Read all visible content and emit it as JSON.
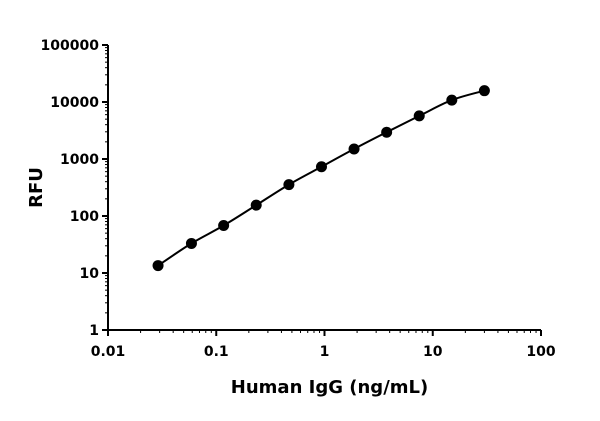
{
  "chart_data": {
    "type": "scatter",
    "title": "",
    "xlabel": "Human IgG (ng/mL)",
    "ylabel": "RFU",
    "xscale": "log",
    "yscale": "log",
    "xlim": [
      0.01,
      100
    ],
    "ylim": [
      1,
      100000
    ],
    "x_ticks": [
      0.01,
      0.1,
      1,
      10,
      100
    ],
    "x_tick_labels": [
      "0.01",
      "0.1",
      "1",
      "10",
      "100"
    ],
    "y_ticks": [
      1,
      10,
      100,
      1000,
      10000,
      100000
    ],
    "y_tick_labels": [
      "1",
      "10",
      "100",
      "1000",
      "10000",
      "100000"
    ],
    "grid": false,
    "legend": "none",
    "fit_curve": true,
    "marker_color": "#000000",
    "line_color": "#000000",
    "series": [
      {
        "x": [
          0.029,
          0.059,
          0.117,
          0.234,
          0.469,
          0.938,
          1.875,
          3.75,
          7.5,
          15,
          30
        ],
        "y": [
          13.5,
          33,
          68,
          155,
          355,
          730,
          1500,
          2950,
          5700,
          10800,
          15800
        ]
      }
    ]
  }
}
